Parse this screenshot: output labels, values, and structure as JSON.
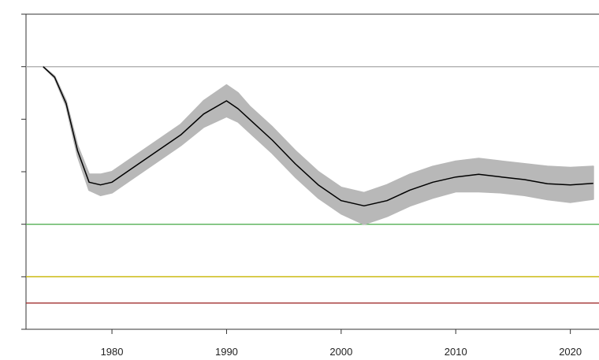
{
  "chart_data": {
    "type": "line",
    "title": "",
    "xlabel": "",
    "ylabel": "",
    "xlim": [
      1972.5,
      2022.5
    ],
    "ylim": [
      0,
      6
    ],
    "x_ticks": [
      1980,
      1990,
      2000,
      2010,
      2020
    ],
    "x_tick_labels": [
      "1980",
      "1990",
      "2000",
      "2010",
      "2020"
    ],
    "y_ticks": [
      0,
      1,
      2,
      3,
      4,
      5,
      6
    ],
    "y_tick_labels": [
      "",
      "",
      "",
      "",
      "",
      "",
      ""
    ],
    "grid": false,
    "legend": null,
    "series": [
      {
        "kind": "line_with_band",
        "color": "#000000",
        "band_color": "#b8b8b8",
        "x": [
          1974,
          1975,
          1976,
          1977,
          1978,
          1979,
          1980,
          1982,
          1984,
          1986,
          1988,
          1990,
          1991,
          1992,
          1994,
          1996,
          1998,
          2000,
          2002,
          2004,
          2006,
          2008,
          2010,
          2012,
          2014,
          2016,
          2018,
          2020,
          2022
        ],
        "values": [
          5.0,
          4.8,
          4.3,
          3.4,
          2.8,
          2.75,
          2.8,
          3.1,
          3.4,
          3.7,
          4.1,
          4.35,
          4.2,
          4.0,
          3.6,
          3.15,
          2.75,
          2.45,
          2.35,
          2.45,
          2.65,
          2.8,
          2.9,
          2.95,
          2.9,
          2.85,
          2.77,
          2.75,
          2.78
        ],
        "lower": [
          5.0,
          4.78,
          4.25,
          3.3,
          2.65,
          2.55,
          2.6,
          2.9,
          3.2,
          3.5,
          3.85,
          4.05,
          3.95,
          3.75,
          3.35,
          2.9,
          2.5,
          2.2,
          2.0,
          2.15,
          2.35,
          2.5,
          2.62,
          2.62,
          2.6,
          2.55,
          2.47,
          2.42,
          2.48
        ],
        "upper": [
          5.0,
          4.82,
          4.35,
          3.5,
          2.95,
          2.95,
          3.0,
          3.3,
          3.6,
          3.9,
          4.35,
          4.65,
          4.5,
          4.25,
          3.85,
          3.4,
          3.0,
          2.7,
          2.6,
          2.75,
          2.95,
          3.1,
          3.2,
          3.25,
          3.2,
          3.15,
          3.1,
          3.08,
          3.1
        ]
      },
      {
        "kind": "hline",
        "value": 5,
        "color": "#b0b0b0"
      },
      {
        "kind": "hline",
        "value": 2,
        "color": "#55b055"
      },
      {
        "kind": "hline",
        "value": 1,
        "color": "#c8b400"
      },
      {
        "kind": "hline",
        "value": 0.5,
        "color": "#a03030"
      }
    ]
  }
}
